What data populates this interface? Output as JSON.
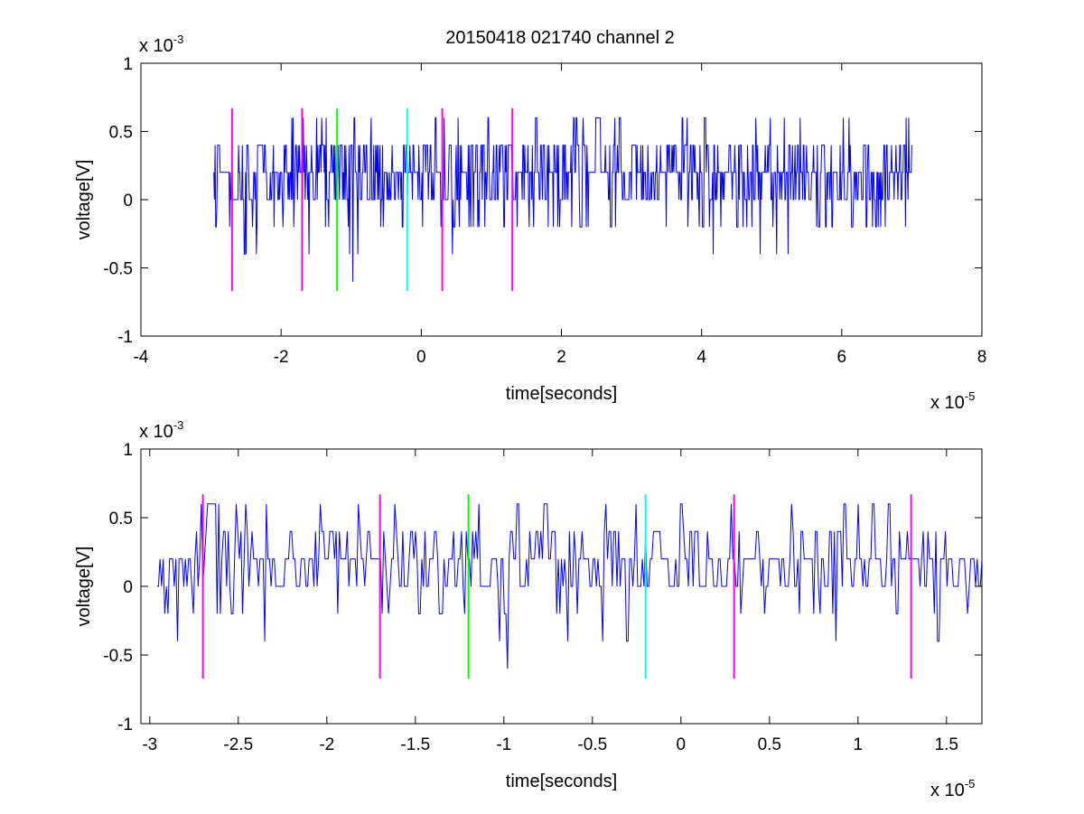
{
  "figure": {
    "title": "20150418 021740 channel 2"
  },
  "chart_data": [
    {
      "type": "line",
      "xlabel": "time[seconds]",
      "ylabel": "voltage[V]",
      "x_exponent": "x 10",
      "x_exponent_power": "-5",
      "y_exponent": "x 10",
      "y_exponent_power": "-3",
      "xlim": [
        -4,
        8
      ],
      "ylim": [
        -1,
        1
      ],
      "xticks": [
        -4,
        -2,
        0,
        2,
        4,
        6,
        8
      ],
      "xtick_labels": [
        "-4",
        "-2",
        "0",
        "2",
        "4",
        "6",
        "8"
      ],
      "yticks": [
        -1,
        -0.5,
        0,
        0.5,
        1
      ],
      "ytick_labels": [
        "-1",
        "-0.5",
        "0",
        "0.5",
        "1"
      ],
      "grid": false,
      "signal": {
        "color": "#0000ff",
        "x_start": -2.96,
        "x_end": 7.0,
        "levels": [
          -0.6,
          -0.4,
          -0.2,
          0,
          0.2,
          0.4,
          0.6
        ],
        "baseline": 0.2
      },
      "markers": [
        {
          "x": -2.7,
          "color": "#ff00ff",
          "ymin": -0.67,
          "ymax": 0.67
        },
        {
          "x": -1.7,
          "color": "#ff00ff",
          "ymin": -0.67,
          "ymax": 0.67
        },
        {
          "x": -1.2,
          "color": "#00ff00",
          "ymin": -0.67,
          "ymax": 0.67
        },
        {
          "x": -0.2,
          "color": "#00ffff",
          "ymin": -0.67,
          "ymax": 0.67
        },
        {
          "x": 0.3,
          "color": "#ff00ff",
          "ymin": -0.67,
          "ymax": 0.67
        },
        {
          "x": 1.3,
          "color": "#ff00ff",
          "ymin": -0.67,
          "ymax": 0.67
        }
      ]
    },
    {
      "type": "line",
      "xlabel": "time[seconds]",
      "ylabel": "voltage[V]",
      "x_exponent": "x 10",
      "x_exponent_power": "-5",
      "y_exponent": "x 10",
      "y_exponent_power": "-3",
      "xlim": [
        -3.05,
        1.7
      ],
      "ylim": [
        -1,
        1
      ],
      "xticks": [
        -3,
        -2.5,
        -2,
        -1.5,
        -1,
        -0.5,
        0,
        0.5,
        1,
        1.5
      ],
      "xtick_labels": [
        "-3",
        "-2.5",
        "-2",
        "-1.5",
        "-1",
        "-0.5",
        "0",
        "0.5",
        "1",
        "1.5"
      ],
      "yticks": [
        -1,
        -0.5,
        0,
        0.5,
        1
      ],
      "ytick_labels": [
        "-1",
        "-0.5",
        "0",
        "0.5",
        "1"
      ],
      "grid": false,
      "signal": {
        "color": "#0000ff",
        "x_start": -2.96,
        "x_end": 1.7,
        "levels": [
          -0.6,
          -0.4,
          -0.2,
          0,
          0.2,
          0.4,
          0.6
        ],
        "baseline": 0.2
      },
      "markers": [
        {
          "x": -2.7,
          "color": "#ff00ff",
          "ymin": -0.67,
          "ymax": 0.67
        },
        {
          "x": -1.7,
          "color": "#ff00ff",
          "ymin": -0.67,
          "ymax": 0.67
        },
        {
          "x": -1.2,
          "color": "#00ff00",
          "ymin": -0.67,
          "ymax": 0.67
        },
        {
          "x": -0.2,
          "color": "#00ffff",
          "ymin": -0.67,
          "ymax": 0.67
        },
        {
          "x": 0.3,
          "color": "#ff00ff",
          "ymin": -0.67,
          "ymax": 0.67
        },
        {
          "x": 1.3,
          "color": "#ff00ff",
          "ymin": -0.67,
          "ymax": 0.67
        }
      ]
    }
  ]
}
